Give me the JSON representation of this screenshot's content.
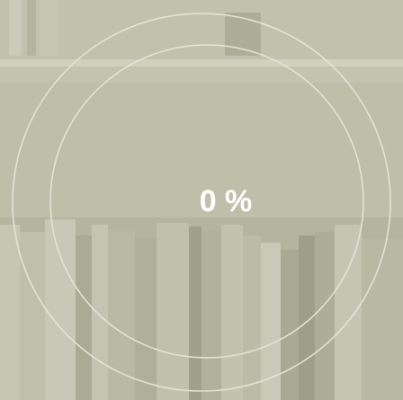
{
  "progress": {
    "text": "0 %"
  }
}
